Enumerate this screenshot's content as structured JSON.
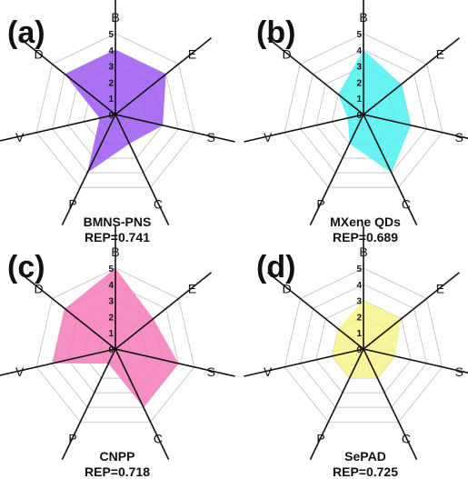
{
  "chart_data": [
    {
      "type": "radar",
      "panel_label": "(a)",
      "axes": [
        "B",
        "E",
        "S",
        "C",
        "P",
        "V",
        "D"
      ],
      "rlim": [
        0,
        5
      ],
      "r_ticks": [
        "0",
        "1",
        "2",
        "3",
        "4",
        "5"
      ],
      "values": [
        4,
        4,
        3,
        2,
        4,
        1,
        4
      ],
      "color": "#9b59f0",
      "name": "BMNS-PNS",
      "score": "REP=0.741"
    },
    {
      "type": "radar",
      "panel_label": "(b)",
      "axes": [
        "B",
        "E",
        "S",
        "C",
        "P",
        "V",
        "D"
      ],
      "rlim": [
        0,
        5
      ],
      "r_ticks": [
        "0",
        "1",
        "2",
        "3",
        "4",
        "5"
      ],
      "values": [
        4,
        3,
        3,
        4,
        2,
        1,
        2
      ],
      "color": "#4ff0f0",
      "name": "MXene QDs",
      "score": "REP=0.689"
    },
    {
      "type": "radar",
      "panel_label": "(c)",
      "axes": [
        "B",
        "E",
        "S",
        "C",
        "P",
        "V",
        "D"
      ],
      "rlim": [
        0,
        5
      ],
      "r_ticks": [
        "0",
        "1",
        "2",
        "3",
        "4",
        "5"
      ],
      "values": [
        5,
        3,
        4,
        4,
        1,
        4,
        4
      ],
      "color": "#f57ab8",
      "name": "CNPP",
      "score": "REP=0.718"
    },
    {
      "type": "radar",
      "panel_label": "(d)",
      "axes": [
        "B",
        "E",
        "S",
        "C",
        "P",
        "V",
        "D"
      ],
      "rlim": [
        0,
        5
      ],
      "r_ticks": [
        "0",
        "1",
        "2",
        "3",
        "4",
        "5"
      ],
      "values": [
        3,
        3,
        2,
        2,
        2,
        2,
        2
      ],
      "color": "#f6f58a",
      "name": "SePAD",
      "score": "REP=0.725"
    }
  ]
}
